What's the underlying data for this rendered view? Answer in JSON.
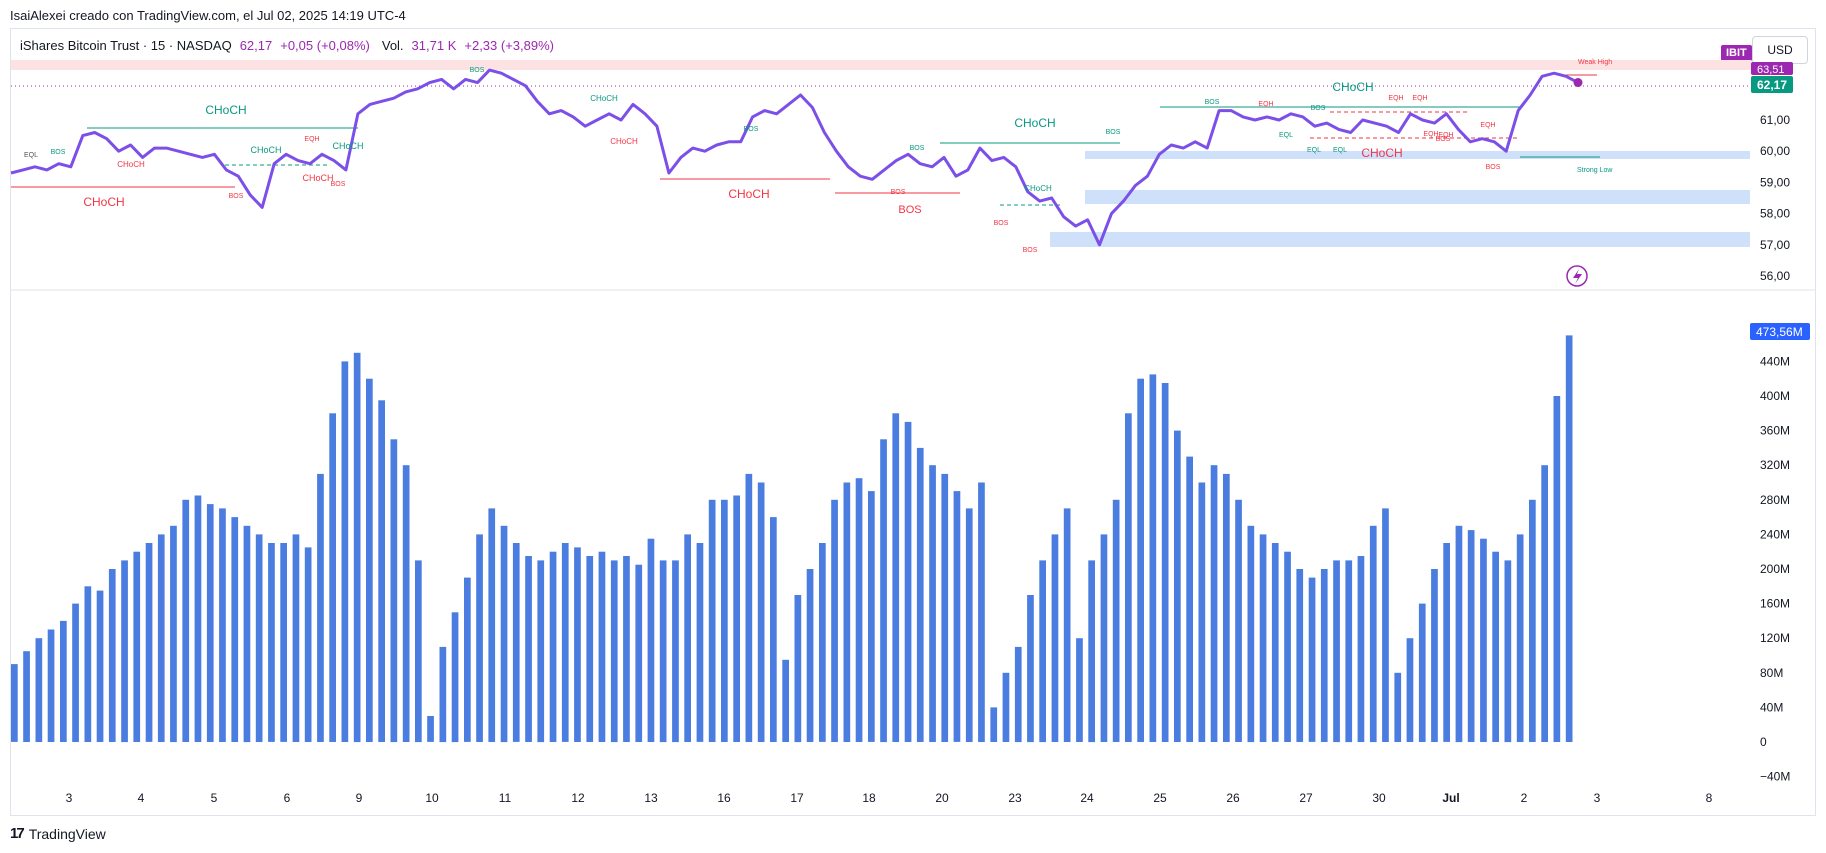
{
  "header": {
    "caption": "IsaiAlexei creado con TradingView.com, el Jul 02, 2025 14:19 UTC-4"
  },
  "legend": {
    "title": "iShares Bitcoin Trust · 15 · NASDAQ",
    "close": "62,17",
    "change": "+0,05 (+0,08%)",
    "volume_label": "Vol.",
    "volume_value": "31,71 K",
    "volume_change": "+2,33 (+3,89%)"
  },
  "ticker_badge": "IBIT",
  "currency": "USD",
  "footer": {
    "logo": "17",
    "brand": "TradingView"
  },
  "colors": {
    "price_line": "#7b4fe8",
    "bull": "#089981",
    "bear": "#f23645",
    "volume": "#4a7ddf",
    "zone": "#cfe0fb",
    "premium": "#fde2e3",
    "badge": "#9c27b0"
  },
  "chart_data": [
    {
      "type": "line",
      "series": [
        {
          "name": "IBIT",
          "values": [
            59.3,
            59.4,
            59.5,
            59.4,
            59.6,
            59.5,
            60.5,
            60.6,
            60.4,
            60.0,
            60.2,
            59.8,
            60.1,
            60.1,
            60.0,
            59.9,
            59.8,
            59.9,
            59.4,
            59.2,
            58.6,
            58.2,
            59.6,
            59.9,
            59.7,
            59.6,
            59.9,
            59.7,
            59.4,
            61.2,
            61.5,
            61.6,
            61.7,
            61.9,
            62.0,
            62.2,
            62.3,
            62.0,
            62.3,
            62.2,
            62.6,
            62.5,
            62.3,
            62.1,
            61.6,
            61.2,
            61.3,
            61.1,
            60.8,
            61.0,
            61.2,
            61.0,
            61.5,
            61.2,
            60.8,
            59.3,
            59.8,
            60.1,
            60.0,
            60.2,
            60.3,
            60.3,
            61.1,
            61.3,
            61.2,
            61.5,
            61.8,
            61.4,
            60.6,
            60.0,
            59.5,
            59.2,
            59.1,
            59.4,
            59.7,
            59.9,
            59.6,
            59.5,
            59.8,
            59.2,
            59.4,
            60.1,
            59.7,
            59.8,
            59.5,
            58.7,
            58.4,
            58.5,
            57.9,
            57.6,
            57.8,
            57.0,
            58.0,
            58.4,
            58.9,
            59.2,
            59.9,
            60.2,
            60.1,
            60.3,
            60.1,
            61.3,
            61.3,
            61.1,
            61.0,
            61.1,
            61.0,
            61.2,
            61.1,
            60.8,
            60.9,
            60.7,
            60.6,
            61.0,
            60.9,
            60.8,
            60.6,
            61.2,
            61.0,
            60.9,
            61.2,
            60.7,
            60.3,
            60.4,
            60.3,
            60.0,
            61.3,
            61.8,
            62.4,
            62.5,
            62.4,
            62.2
          ]
        }
      ],
      "price_axis_ticks": [
        "56,00",
        "57,00",
        "58,00",
        "59,00",
        "60,00",
        "61,00"
      ],
      "last_price": "62,17",
      "top_price_label": "63,51",
      "annotations": {
        "choch": [
          "CHoCH",
          "CHoCH",
          "CHoCH",
          "CHoCH",
          "CHoCH",
          "CHoCH",
          "CHoCH",
          "CHoCH",
          "CHoCH",
          "CHoCH",
          "CHoCH",
          "CHoCH",
          "CHoCH"
        ],
        "bos": [
          "BOS",
          "BOS",
          "BOS",
          "BOS",
          "BOS",
          "BOS",
          "BOS",
          "BOS",
          "BOS",
          "BOS",
          "BOS",
          "BOS",
          "BOS",
          "BOS",
          "BOS"
        ],
        "eqh": [
          "EQH",
          "EQH",
          "EQH",
          "EQH",
          "EQH",
          "EQH",
          "EQH"
        ],
        "eql": [
          "EQL",
          "EQL",
          "EQL"
        ],
        "weak_high": "Weak High",
        "strong_low": "Strong Low",
        "eql_small": "EQL"
      }
    },
    {
      "type": "bar",
      "name": "Vol.",
      "values": [
        90,
        105,
        120,
        130,
        140,
        160,
        180,
        175,
        200,
        210,
        220,
        230,
        240,
        250,
        280,
        285,
        275,
        270,
        260,
        250,
        240,
        230,
        230,
        240,
        225,
        310,
        380,
        440,
        450,
        420,
        395,
        350,
        320,
        210,
        30,
        110,
        150,
        190,
        240,
        270,
        250,
        230,
        215,
        210,
        220,
        230,
        225,
        215,
        220,
        210,
        215,
        205,
        235,
        210,
        210,
        240,
        230,
        280,
        280,
        285,
        310,
        300,
        260,
        95,
        170,
        200,
        230,
        280,
        300,
        305,
        290,
        350,
        380,
        370,
        340,
        320,
        310,
        290,
        270,
        300,
        40,
        80,
        110,
        170,
        210,
        240,
        270,
        120,
        210,
        240,
        280,
        380,
        420,
        425,
        415,
        360,
        330,
        300,
        320,
        310,
        280,
        250,
        240,
        230,
        220,
        200,
        190,
        200,
        210,
        210,
        215,
        250,
        270,
        80,
        120,
        160,
        200,
        230,
        250,
        245,
        235,
        220,
        210,
        240,
        280,
        320,
        400,
        470
      ],
      "ylim": [
        -40,
        480
      ],
      "y_ticks": [
        "−40M",
        "0",
        "40M",
        "80M",
        "120M",
        "160M",
        "200M",
        "240M",
        "280M",
        "320M",
        "360M",
        "400M",
        "440M"
      ],
      "last_value": "473,56M"
    }
  ],
  "x_axis": {
    "ticks": [
      "3",
      "4",
      "5",
      "6",
      "9",
      "10",
      "11",
      "12",
      "13",
      "16",
      "17",
      "18",
      "20",
      "23",
      "24",
      "25",
      "26",
      "27",
      "30",
      "Jul",
      "2",
      "3",
      "8"
    ]
  }
}
